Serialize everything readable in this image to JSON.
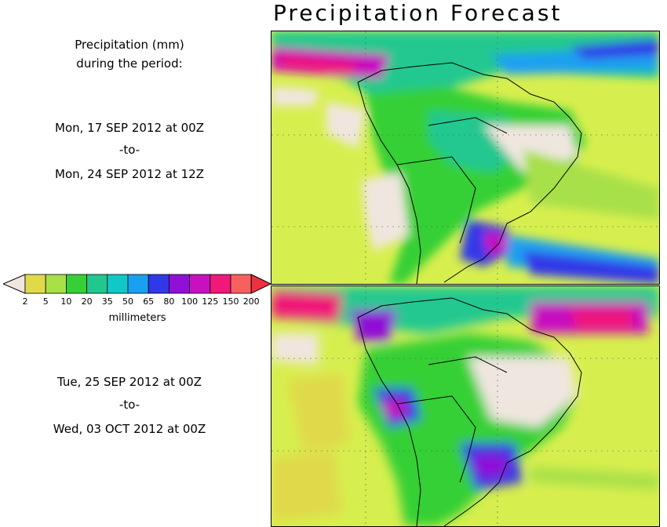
{
  "title": "Precipitation Forecast",
  "caption": {
    "line1": "Precipitation (mm)",
    "line2": "during the period:"
  },
  "period1": {
    "start": "Mon, 17 SEP 2012 at 00Z",
    "sep": "-to-",
    "end": "Mon, 24 SEP 2012 at 12Z"
  },
  "period2": {
    "start": "Tue, 25 SEP 2012 at 00Z",
    "sep": "-to-",
    "end": "Wed, 03 OCT 2012 at 00Z"
  },
  "legend": {
    "units": "millimeters",
    "ticks": [
      "2",
      "5",
      "10",
      "20",
      "35",
      "50",
      "65",
      "80",
      "100",
      "125",
      "150",
      "200"
    ],
    "low_color": "#f0e6e0",
    "colors": [
      "#e0d94a",
      "#a8e048",
      "#36d036",
      "#20c890",
      "#10c8c8",
      "#1aa0f0",
      "#3038e8",
      "#9010d8",
      "#c810c0",
      "#f01878",
      "#f86060"
    ],
    "high_color": "#f03040"
  },
  "map_colors": {
    "land_dry": "#f0e6e0",
    "light": "#e0d94a",
    "lightgreen": "#a8e048",
    "green": "#36d036",
    "teal": "#20c890",
    "cyan": "#10c8c8",
    "blue": "#1aa0f0",
    "darkblue": "#3038e8",
    "purple": "#9010d8",
    "magenta": "#c810c0",
    "pink": "#f01878",
    "red": "#f86060"
  }
}
